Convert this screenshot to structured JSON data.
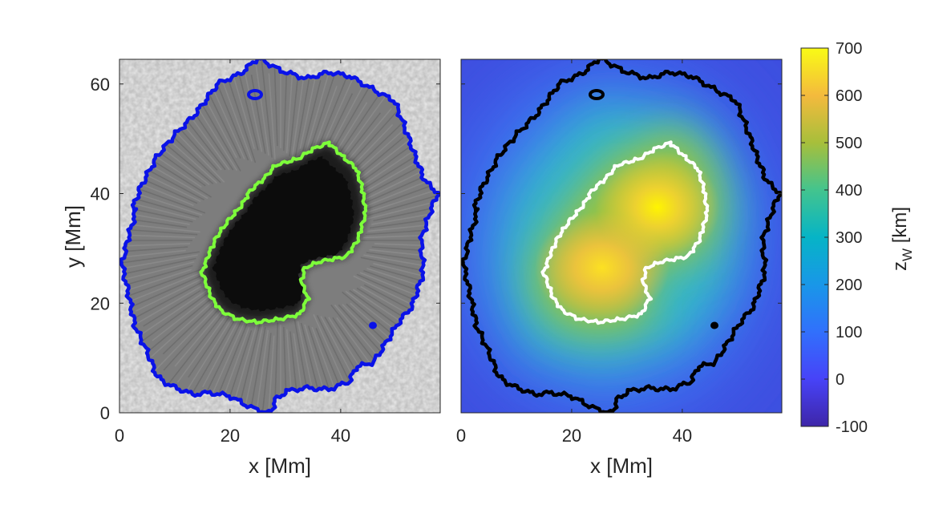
{
  "chart_data": [
    {
      "type": "heatmap",
      "panel": "left",
      "image": "grayscale continuum intensity, dark umbra in center, filamentary penumbra, granulation outside",
      "title": "",
      "xlabel": "x [Mm]",
      "ylabel": "y [Mm]",
      "xlim": [
        0,
        58
      ],
      "ylim": [
        0,
        64.5
      ],
      "xticks": [
        0,
        20,
        40
      ],
      "yticks": [
        0,
        20,
        40,
        60
      ],
      "contours": [
        {
          "boundary": "umbra",
          "color": "#7dff3a"
        },
        {
          "boundary": "penumbra",
          "color": "#0a12e8"
        }
      ]
    },
    {
      "type": "heatmap",
      "panel": "right",
      "title": "",
      "xlabel": "x [Mm]",
      "ylabel": "",
      "xlim": [
        0,
        58
      ],
      "ylim": [
        0,
        64.5
      ],
      "xticks": [
        0,
        20,
        40
      ],
      "yticks": [
        0,
        20,
        40,
        60
      ],
      "colormap": "parula",
      "peaks": [
        {
          "x": 35.5,
          "y": 37.5,
          "value": 690
        },
        {
          "x": 25.5,
          "y": 26.5,
          "value": 650
        }
      ],
      "background_value": 60,
      "contours": [
        {
          "boundary": "umbra",
          "color": "#ffffff"
        },
        {
          "boundary": "penumbra",
          "color": "#000000"
        }
      ],
      "colorbar": {
        "label_main": "z",
        "label_sub": "W",
        "label_unit": " [km]",
        "clim": [
          -100,
          700
        ],
        "ticks": [
          -100,
          0,
          100,
          200,
          300,
          400,
          500,
          600,
          700
        ]
      }
    }
  ]
}
